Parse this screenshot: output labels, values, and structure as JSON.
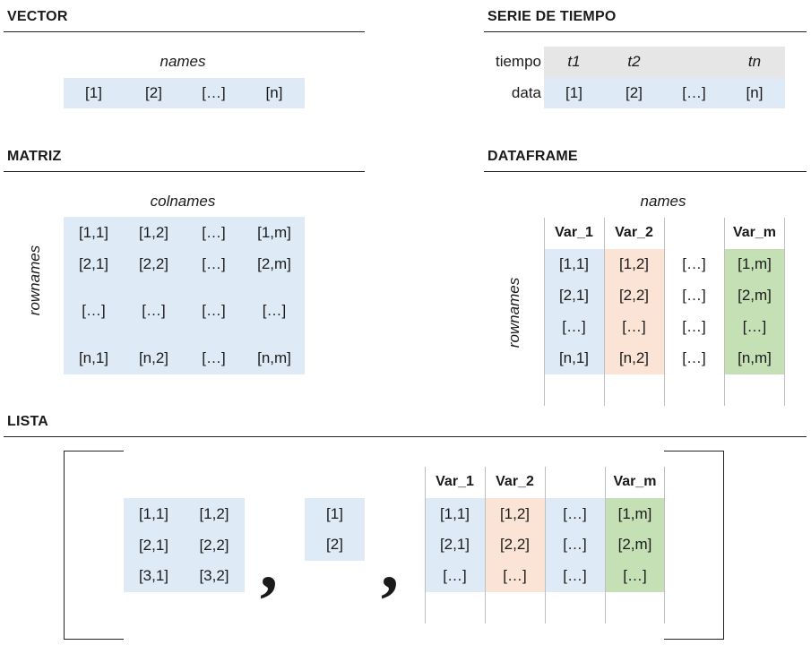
{
  "sections": {
    "vector": "VECTOR",
    "serie": "SERIE DE TIEMPO",
    "matriz": "MATRIZ",
    "dataframe": "DATAFRAME",
    "lista": "LISTA"
  },
  "vector": {
    "label": "names",
    "cells": [
      "[1]",
      "[2]",
      "[…]",
      "[n]"
    ]
  },
  "serie": {
    "row_labels": [
      "tiempo",
      "data"
    ],
    "time": [
      "t1",
      "t2",
      "",
      "tn"
    ],
    "data": [
      "[1]",
      "[2]",
      "[…]",
      "[n]"
    ]
  },
  "matriz": {
    "col_label": "colnames",
    "row_label": "rownames",
    "rows": [
      [
        "[1,1]",
        "[1,2]",
        "[…]",
        "[1,m]"
      ],
      [
        "[2,1]",
        "[2,2]",
        "[…]",
        "[2,m]"
      ],
      [
        "[…]",
        "[…]",
        "[…]",
        "[…]"
      ],
      [
        "[n,1]",
        "[n,2]",
        "[…]",
        "[n,m]"
      ]
    ]
  },
  "dataframe": {
    "col_label": "names",
    "row_label": "rownames",
    "headers": [
      "Var_1",
      "Var_2",
      "",
      "Var_m"
    ],
    "rows": [
      [
        "[1,1]",
        "[1,2]",
        "[…]",
        "[1,m]"
      ],
      [
        "[2,1]",
        "[2,2]",
        "[…]",
        "[2,m]"
      ],
      [
        "[…]",
        "[…]",
        "[…]",
        "[…]"
      ],
      [
        "[n,1]",
        "[n,2]",
        "[…]",
        "[n,m]"
      ]
    ]
  },
  "lista": {
    "matrix": [
      [
        "[1,1]",
        "[1,2]"
      ],
      [
        "[2,1]",
        "[2,2]"
      ],
      [
        "[3,1]",
        "[3,2]"
      ]
    ],
    "vector": [
      "[1]",
      "[2]"
    ],
    "separator": ",",
    "df_headers": [
      "Var_1",
      "Var_2",
      "",
      "Var_m"
    ],
    "df_rows": [
      [
        "[1,1]",
        "[1,2]",
        "[…]",
        "[1,m]"
      ],
      [
        "[2,1]",
        "[2,2]",
        "[…]",
        "[2,m]"
      ],
      [
        "[…]",
        "[…]",
        "[…]",
        "[…]"
      ]
    ]
  },
  "colors": {
    "blue": "#deeaf6",
    "grey": "#e7e6e6",
    "orange": "#fbe4d5",
    "green": "#c5e0b4"
  }
}
